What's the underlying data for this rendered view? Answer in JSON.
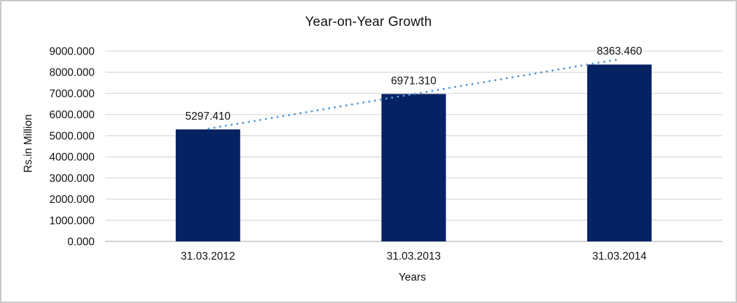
{
  "frame": {
    "background": "#ffffff",
    "border_color": "#c9c9c9"
  },
  "chart_data": {
    "type": "bar",
    "title": "Year-on-Year Growth",
    "xlabel": "Years",
    "ylabel": "Rs.in Million",
    "categories": [
      "31.03.2012",
      "31.03.2013",
      "31.03.2014"
    ],
    "values": [
      5297.41,
      6971.31,
      8363.46
    ],
    "data_labels": [
      "5297.410",
      "6971.310",
      "8363.460"
    ],
    "y_axis": {
      "min": 0,
      "max": 9000,
      "step": 1000,
      "tick_labels": [
        "9000.000",
        "8000.000",
        "7000.000",
        "6000.000",
        "5000.000",
        "4000.000",
        "3000.000",
        "2000.000",
        "1000.000",
        "0.000"
      ]
    },
    "grid": true,
    "legend": "none",
    "colors": {
      "bar": "#052263",
      "gridline": "#d9d9d9",
      "axis_line": "#c6c6c6",
      "text": "#111111",
      "trendline": "#5b9bd5"
    },
    "trendline": {
      "type": "linear",
      "style": "dotted"
    }
  }
}
